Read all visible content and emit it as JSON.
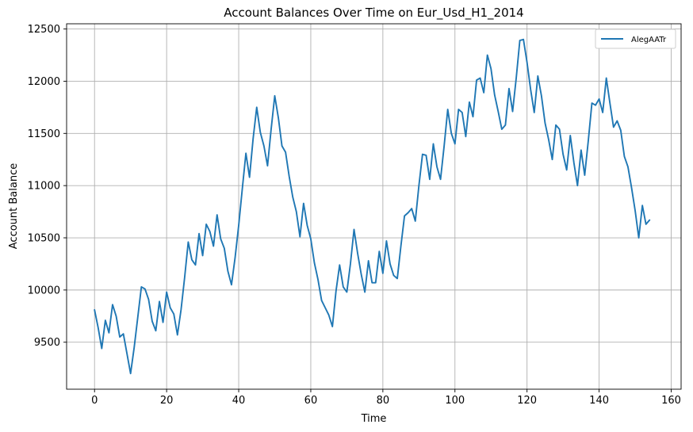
{
  "chart_data": {
    "type": "line",
    "title": "Account Balances Over Time on Eur_Usd_H1_2014",
    "xlabel": "Time",
    "ylabel": "Account Balance",
    "xlim": [
      -7.75,
      162.75
    ],
    "ylim": [
      9050,
      12550
    ],
    "xticks": [
      0,
      20,
      40,
      60,
      80,
      100,
      120,
      140,
      160
    ],
    "yticks": [
      9500,
      10000,
      10500,
      11000,
      11500,
      12000,
      12500
    ],
    "grid": true,
    "legend_position": "top-right",
    "series": [
      {
        "name": "AlegAATr",
        "color": "#1f77b4",
        "x": [
          0,
          1,
          2,
          3,
          4,
          5,
          6,
          7,
          8,
          9,
          10,
          11,
          12,
          13,
          14,
          15,
          16,
          17,
          18,
          19,
          20,
          21,
          22,
          23,
          24,
          25,
          26,
          27,
          28,
          29,
          30,
          31,
          32,
          33,
          34,
          35,
          36,
          37,
          38,
          39,
          40,
          41,
          42,
          43,
          44,
          45,
          46,
          47,
          48,
          49,
          50,
          51,
          52,
          53,
          54,
          55,
          56,
          57,
          58,
          59,
          60,
          61,
          62,
          63,
          64,
          65,
          66,
          67,
          68,
          69,
          70,
          71,
          72,
          73,
          74,
          75,
          76,
          77,
          78,
          79,
          80,
          81,
          82,
          83,
          84,
          85,
          86,
          87,
          88,
          89,
          90,
          91,
          92,
          93,
          94,
          95,
          96,
          97,
          98,
          99,
          100,
          101,
          102,
          103,
          104,
          105,
          106,
          107,
          108,
          109,
          110,
          111,
          112,
          113,
          114,
          115,
          116,
          117,
          118,
          119,
          120,
          121,
          122,
          123,
          124,
          125,
          126,
          127,
          128,
          129,
          130,
          131,
          132,
          133,
          134,
          135,
          136,
          137,
          138,
          139,
          140,
          141,
          142,
          143,
          144,
          145,
          146,
          147,
          148,
          149,
          150,
          151,
          152,
          153,
          154
        ],
        "values": [
          9810,
          9640,
          9440,
          9710,
          9590,
          9860,
          9750,
          9550,
          9580,
          9390,
          9200,
          9450,
          9740,
          10030,
          10010,
          9910,
          9700,
          9610,
          9890,
          9690,
          9980,
          9830,
          9770,
          9570,
          9810,
          10120,
          10460,
          10290,
          10240,
          10540,
          10330,
          10630,
          10560,
          10420,
          10720,
          10490,
          10400,
          10180,
          10050,
          10310,
          10620,
          10970,
          11310,
          11080,
          11450,
          11750,
          11510,
          11380,
          11190,
          11540,
          11860,
          11650,
          11380,
          11320,
          11090,
          10890,
          10750,
          10510,
          10830,
          10620,
          10490,
          10260,
          10100,
          9900,
          9830,
          9760,
          9650,
          9990,
          10240,
          10030,
          9980,
          10250,
          10580,
          10350,
          10150,
          9980,
          10280,
          10070,
          10070,
          10370,
          10160,
          10470,
          10250,
          10140,
          10110,
          10420,
          10710,
          10740,
          10780,
          10660,
          11000,
          11300,
          11290,
          11060,
          11400,
          11180,
          11060,
          11380,
          11730,
          11500,
          11400,
          11730,
          11700,
          11470,
          11800,
          11660,
          12010,
          12030,
          11890,
          12250,
          12120,
          11870,
          11710,
          11540,
          11580,
          11930,
          11710,
          12030,
          12390,
          12400,
          12180,
          11920,
          11700,
          12050,
          11860,
          11600,
          11440,
          11250,
          11580,
          11540,
          11300,
          11150,
          11480,
          11220,
          11000,
          11340,
          11100,
          11430,
          11790,
          11770,
          11830,
          11700,
          12030,
          11790,
          11560,
          11620,
          11530,
          11280,
          11180,
          10980,
          10760,
          10500,
          10810,
          10630,
          10670
        ]
      }
    ]
  }
}
